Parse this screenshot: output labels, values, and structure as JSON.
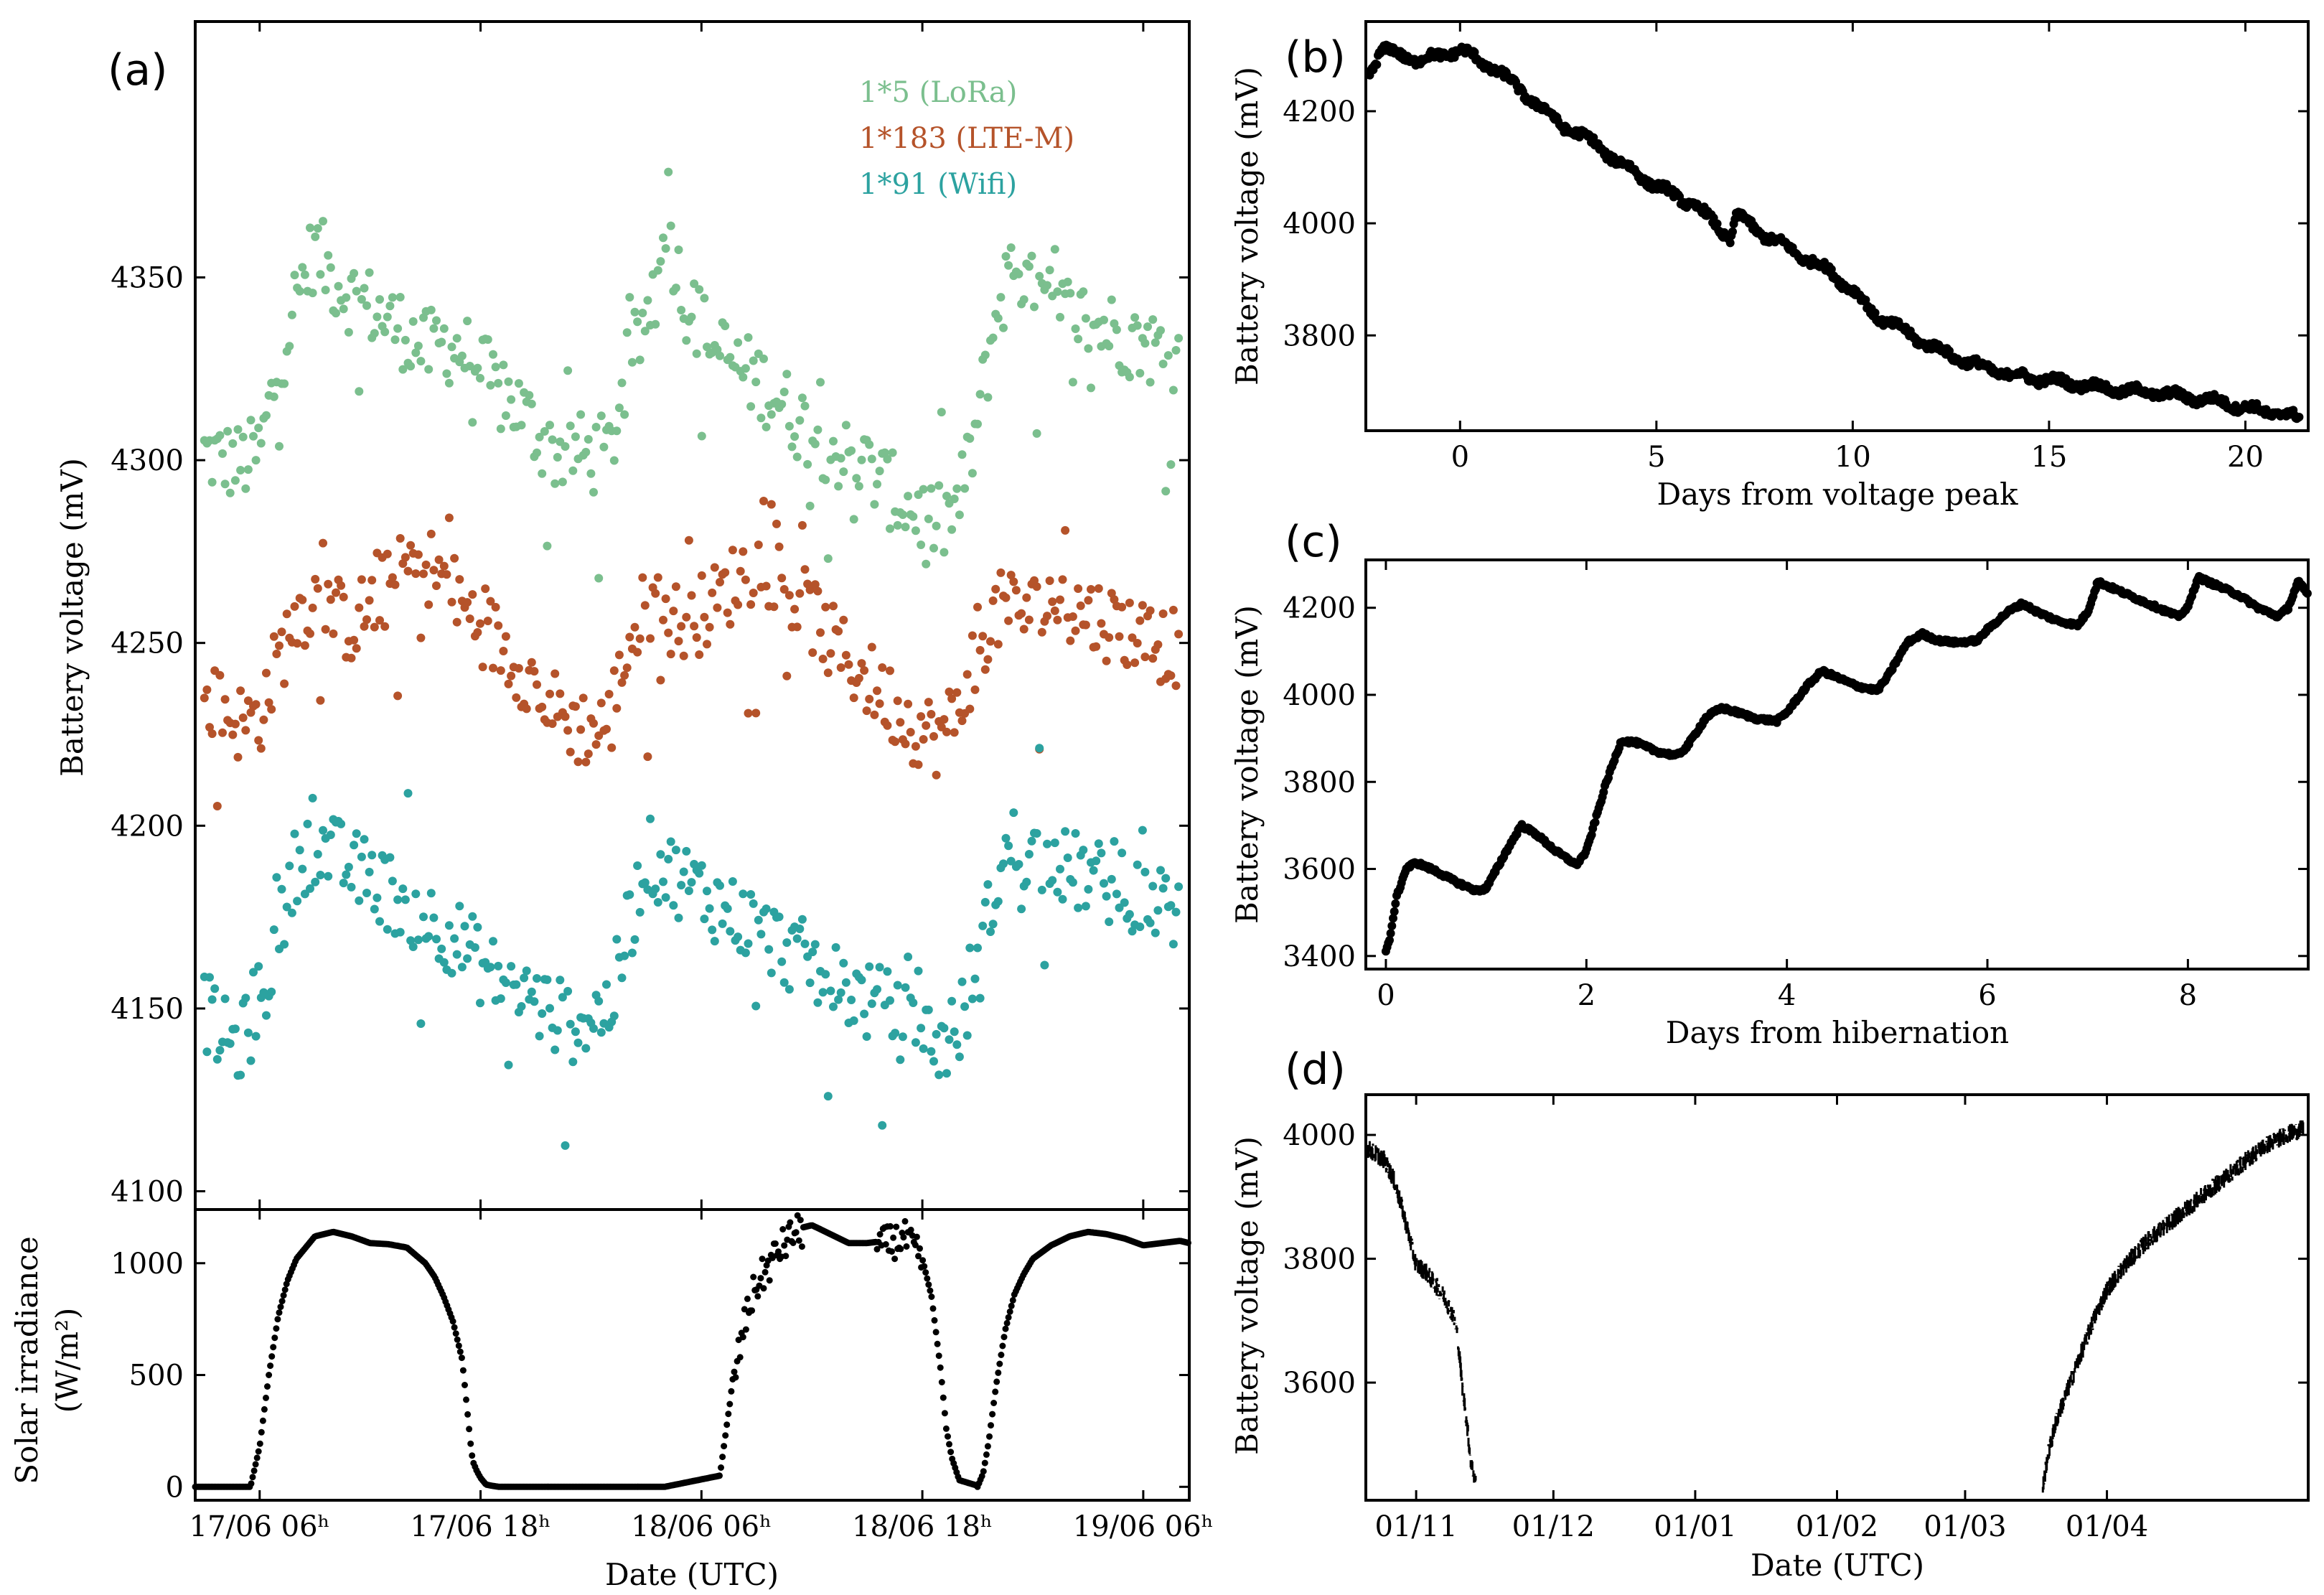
{
  "chart_data": [
    {
      "panel": "(a)",
      "type": "scatter",
      "title": "",
      "xlabel": "",
      "ylabel": "Battery voltage (mV)",
      "xlim": [
        2.5,
        56.5
      ],
      "ylim": [
        4095,
        4420
      ],
      "yticks": [
        4100,
        4150,
        4200,
        4250,
        4300,
        4350
      ],
      "legend_position": "top-right",
      "series": [
        {
          "name": "1*5 (LoRa)",
          "color": "#7bbf8e",
          "x": [
            3,
            4,
            5,
            6,
            7,
            8,
            9,
            10,
            11,
            12,
            13,
            14,
            15,
            16,
            17,
            18,
            19,
            20,
            21,
            22,
            23,
            24,
            25,
            26,
            27,
            28,
            29,
            30,
            31,
            32,
            33,
            34,
            35,
            36,
            37,
            38,
            39,
            40,
            41,
            42,
            43,
            44,
            45,
            46,
            47,
            48,
            49,
            50,
            51,
            52,
            53,
            54,
            55,
            56
          ],
          "y": [
            4302,
            4300,
            4299,
            4302,
            4325,
            4345,
            4358,
            4350,
            4345,
            4342,
            4338,
            4335,
            4330,
            4332,
            4330,
            4325,
            4318,
            4315,
            4308,
            4302,
            4303,
            4301,
            4302,
            4325,
            4338,
            4368,
            4345,
            4336,
            4330,
            4325,
            4322,
            4318,
            4312,
            4308,
            4304,
            4300,
            4298,
            4293,
            4288,
            4285,
            4282,
            4288,
            4310,
            4340,
            4355,
            4345,
            4342,
            4340,
            4338,
            4336,
            4334,
            4332,
            4330,
            4328
          ]
        },
        {
          "name": "1*183 (LTE-M)",
          "color": "#b5532a",
          "x": [
            3,
            4,
            5,
            6,
            7,
            8,
            9,
            10,
            11,
            12,
            13,
            14,
            15,
            16,
            17,
            18,
            19,
            20,
            21,
            22,
            23,
            24,
            25,
            26,
            27,
            28,
            29,
            30,
            31,
            32,
            33,
            34,
            35,
            36,
            37,
            38,
            39,
            40,
            41,
            42,
            43,
            44,
            45,
            46,
            47,
            48,
            49,
            50,
            51,
            52,
            53,
            54,
            55,
            56
          ],
          "y": [
            4235,
            4232,
            4228,
            4230,
            4245,
            4258,
            4262,
            4258,
            4255,
            4260,
            4265,
            4270,
            4272,
            4268,
            4260,
            4255,
            4250,
            4245,
            4238,
            4232,
            4228,
            4226,
            4228,
            4250,
            4260,
            4258,
            4255,
            4258,
            4262,
            4268,
            4272,
            4270,
            4262,
            4258,
            4250,
            4245,
            4240,
            4235,
            4230,
            4226,
            4224,
            4232,
            4250,
            4258,
            4260,
            4258,
            4262,
            4260,
            4258,
            4256,
            4254,
            4252,
            4250,
            4248
          ]
        },
        {
          "name": "1*91 (Wifi)",
          "color": "#2ca2a0",
          "x": [
            3,
            4,
            5,
            6,
            7,
            8,
            9,
            10,
            11,
            12,
            13,
            14,
            15,
            16,
            17,
            18,
            19,
            20,
            21,
            22,
            23,
            24,
            25,
            26,
            27,
            28,
            29,
            30,
            31,
            32,
            33,
            34,
            35,
            36,
            37,
            38,
            39,
            40,
            41,
            42,
            43,
            44,
            45,
            46,
            47,
            48,
            49,
            50,
            51,
            52,
            53,
            54,
            55,
            56
          ],
          "y": [
            4150,
            4142,
            4140,
            4152,
            4168,
            4190,
            4195,
            4192,
            4188,
            4186,
            4182,
            4178,
            4175,
            4172,
            4168,
            4162,
            4158,
            4155,
            4152,
            4148,
            4146,
            4148,
            4150,
            4170,
            4192,
            4188,
            4185,
            4182,
            4178,
            4175,
            4172,
            4168,
            4165,
            4162,
            4158,
            4155,
            4152,
            4150,
            4146,
            4143,
            4140,
            4145,
            4160,
            4185,
            4195,
            4192,
            4190,
            4188,
            4186,
            4184,
            4182,
            4180,
            4178,
            4176
          ]
        }
      ],
      "annotations": {
        "legend": [
          "1*5 (LoRa)",
          "1*183 (LTE-M)",
          "1*91 (Wifi)"
        ]
      }
    },
    {
      "panel": "(a) bottom",
      "type": "scatter",
      "xlabel": "Date (UTC)",
      "ylabel_line1": "Solar irradiance",
      "ylabel_line2": "(W/m²)",
      "xlim": [
        2.5,
        56.5
      ],
      "ylim": [
        -60,
        1240
      ],
      "yticks": [
        0,
        500,
        1000
      ],
      "xtick_positions": [
        6,
        18,
        30,
        42,
        54
      ],
      "xtick_labels": [
        "17/06 06ʰ",
        "17/06 18ʰ",
        "18/06 06ʰ",
        "18/06 18ʰ",
        "19/06 06ʰ"
      ],
      "series": [
        {
          "name": "irradiance",
          "color": "#000000",
          "x": [
            2.5,
            3.0,
            4.0,
            4.5,
            5.0,
            5.5,
            6.0,
            6.5,
            7.0,
            7.5,
            8.0,
            9.0,
            10.0,
            11.0,
            12.0,
            13.0,
            14.0,
            15.0,
            15.5,
            16.0,
            16.5,
            17.0,
            17.5,
            17.6,
            17.8,
            18.0,
            18.3,
            18.6,
            19.0,
            20.0,
            22.0,
            25.0,
            28.0,
            31.0,
            31.5,
            32.0,
            32.5,
            33.0,
            33.5,
            34.0,
            34.5,
            35.0,
            36.0,
            37.0,
            38.0,
            39.0,
            40.0,
            41.0,
            41.5,
            42.0,
            42.5,
            43.0,
            43.3,
            43.6,
            44.0,
            45.0,
            47.0,
            50.0,
            53.0,
            55.0,
            55.3,
            55.6,
            56.0,
            56.5,
            57.0,
            58.0,
            59.0,
            60.0,
            61.0,
            62.0
          ],
          "y": [
            0,
            0,
            0,
            0,
            0,
            0,
            180,
            500,
            760,
            920,
            1020,
            1120,
            1140,
            1120,
            1090,
            1085,
            1070,
            1000,
            940,
            850,
            740,
            570,
            160,
            110,
            70,
            40,
            10,
            5,
            0,
            0,
            0,
            0,
            0,
            50,
            350,
            600,
            800,
            920,
            980,
            1050,
            1100,
            1150,
            1170,
            1130,
            1090,
            1090,
            1100,
            1130,
            1080,
            1020,
            850,
            520,
            260,
            130,
            30,
            5,
            0,
            0,
            0,
            0,
            0,
            0,
            0,
            0,
            0,
            0,
            0,
            0,
            0,
            0
          ]
        },
        {
          "name": "irradiance-day3",
          "color": "#000000",
          "x": [
            45.0,
            45.3,
            45.6,
            46.0,
            46.5,
            47.0,
            47.5,
            48.0,
            49.0,
            50.0,
            51.0,
            52.0,
            53.0,
            54.0,
            55.0,
            56.0,
            56.5
          ],
          "y": [
            0,
            60,
            200,
            450,
            700,
            860,
            950,
            1020,
            1080,
            1120,
            1140,
            1130,
            1110,
            1080,
            1090,
            1100,
            1090
          ]
        }
      ]
    },
    {
      "panel": "(b)",
      "type": "scatter",
      "xlabel": "Days from voltage peak",
      "ylabel": "Battery voltage (mV)",
      "xlim": [
        -2.4,
        21.6
      ],
      "ylim": [
        3630,
        4360
      ],
      "xticks": [
        0,
        5,
        10,
        15,
        20
      ],
      "yticks": [
        3800,
        4000,
        4200
      ],
      "series": [
        {
          "name": "voltage",
          "color": "#000000",
          "x": [
            -2.3,
            -2.0,
            -1.5,
            -1.0,
            -0.5,
            0,
            0.5,
            1,
            1.5,
            2,
            2.5,
            3,
            3.5,
            4,
            4.5,
            5,
            5.5,
            6,
            6.5,
            6.9,
            7.0,
            7.2,
            7.5,
            8,
            8.5,
            9,
            9.5,
            10,
            10.5,
            11,
            11.5,
            12,
            12.5,
            13,
            13.5,
            14,
            14.5,
            15,
            15.5,
            16,
            16.5,
            17,
            17.5,
            18,
            18.5,
            19,
            19.5,
            20,
            20.5,
            21,
            21.4
          ],
          "y": [
            4270,
            4310,
            4300,
            4290,
            4300,
            4310,
            4290,
            4270,
            4240,
            4210,
            4180,
            4160,
            4140,
            4110,
            4090,
            4065,
            4050,
            4030,
            4000,
            3970,
            4010,
            4010,
            3990,
            3970,
            3950,
            3930,
            3910,
            3880,
            3840,
            3820,
            3800,
            3780,
            3765,
            3750,
            3740,
            3730,
            3725,
            3720,
            3715,
            3710,
            3705,
            3700,
            3700,
            3695,
            3690,
            3685,
            3680,
            3670,
            3665,
            3660,
            3650
          ]
        }
      ]
    },
    {
      "panel": "(c)",
      "type": "scatter",
      "xlabel": "Days from hibernation",
      "ylabel": "Battery voltage (mV)",
      "xlim": [
        -0.2,
        9.2
      ],
      "ylim": [
        3370,
        4310
      ],
      "xticks": [
        0,
        2,
        4,
        6,
        8
      ],
      "yticks": [
        3400,
        3600,
        3800,
        4000,
        4200
      ],
      "series": [
        {
          "name": "voltage",
          "color": "#000000",
          "x": [
            0.0,
            0.05,
            0.1,
            0.2,
            0.3,
            0.5,
            0.7,
            0.9,
            1.0,
            1.2,
            1.35,
            1.5,
            1.7,
            1.9,
            2.0,
            2.2,
            2.35,
            2.5,
            2.7,
            2.9,
            3.0,
            3.2,
            3.35,
            3.5,
            3.7,
            3.9,
            4.0,
            4.2,
            4.35,
            4.5,
            4.7,
            4.9,
            5.0,
            5.2,
            5.35,
            5.5,
            5.7,
            5.9,
            6.0,
            6.2,
            6.35,
            6.5,
            6.7,
            6.9,
            7.0,
            7.1,
            7.3,
            7.5,
            7.7,
            7.9,
            8.0,
            8.1,
            8.3,
            8.5,
            8.7,
            8.9,
            9.0,
            9.1,
            9.2
          ],
          "y": [
            3410,
            3450,
            3530,
            3600,
            3615,
            3595,
            3570,
            3550,
            3555,
            3640,
            3700,
            3680,
            3640,
            3610,
            3640,
            3800,
            3895,
            3890,
            3870,
            3860,
            3880,
            3950,
            3970,
            3960,
            3945,
            3940,
            3960,
            4020,
            4055,
            4040,
            4020,
            4010,
            4040,
            4120,
            4140,
            4125,
            4120,
            4125,
            4150,
            4190,
            4210,
            4190,
            4170,
            4160,
            4190,
            4260,
            4240,
            4220,
            4200,
            4180,
            4200,
            4270,
            4250,
            4230,
            4200,
            4180,
            4200,
            4260,
            4230
          ]
        }
      ]
    },
    {
      "panel": "(d)",
      "type": "scatter",
      "xlabel": "Date (UTC)",
      "ylabel": "Battery voltage (mV)",
      "xlim": [
        -11,
        195
      ],
      "ylim": [
        3410,
        4065
      ],
      "xtick_positions": [
        0,
        30,
        61,
        92,
        120,
        151
      ],
      "xtick_labels": [
        "01/11",
        "01/12",
        "01/01",
        "01/02",
        "01/03",
        "01/04"
      ],
      "yticks": [
        3600,
        3800,
        4000
      ],
      "series": [
        {
          "name": "voltage-autumn",
          "color": "#000000",
          "x": [
            -11,
            -9,
            -7,
            -5,
            -3,
            -1,
            0,
            2,
            4,
            6,
            8,
            9,
            10,
            11,
            12,
            13
          ],
          "y": [
            3980,
            3970,
            3960,
            3930,
            3880,
            3820,
            3790,
            3780,
            3760,
            3740,
            3710,
            3680,
            3600,
            3540,
            3470,
            3440
          ]
        },
        {
          "name": "voltage-spring",
          "color": "#000000",
          "x": [
            137,
            138,
            140,
            142,
            145,
            148,
            151,
            155,
            160,
            165,
            170,
            175,
            180,
            185,
            190,
            194
          ],
          "y": [
            3430,
            3480,
            3540,
            3580,
            3640,
            3700,
            3750,
            3790,
            3830,
            3860,
            3890,
            3920,
            3950,
            3980,
            4000,
            4010
          ]
        }
      ]
    }
  ],
  "labels": {
    "panel_a": "(a)",
    "panel_b": "(b)",
    "panel_c": "(c)",
    "panel_d": "(d)",
    "legend_lora": "1*5 (LoRa)",
    "legend_lte": "1*183 (LTE-M)",
    "legend_wifi": "1*91 (Wifi)",
    "a_ylabel": "Battery voltage (mV)",
    "a2_ylabel_1": "Solar irradiance",
    "a2_ylabel_2": "(W/m²)",
    "a2_xlabel": "Date (UTC)",
    "b_xlabel": "Days from voltage peak",
    "b_ylabel": "Battery voltage (mV)",
    "c_xlabel": "Days from hibernation",
    "c_ylabel": "Battery voltage (mV)",
    "d_xlabel": "Date (UTC)",
    "d_ylabel": "Battery voltage (mV)"
  }
}
